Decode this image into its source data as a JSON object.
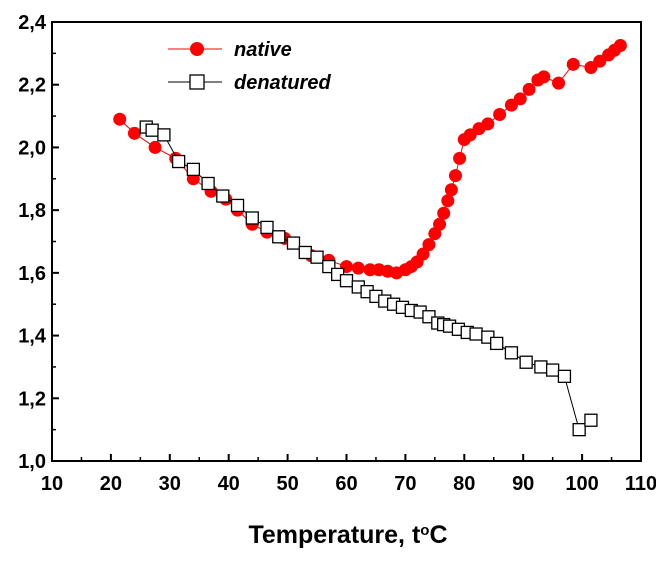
{
  "chart_data": {
    "type": "scatter",
    "title": "",
    "xlabel_main": "Temperature, t",
    "xlabel_sup": "o",
    "xlabel_unit": "C",
    "ylabel": "",
    "xlim": [
      10,
      110
    ],
    "ylim": [
      1.0,
      2.4
    ],
    "x_ticks": [
      "10",
      "20",
      "30",
      "40",
      "50",
      "60",
      "70",
      "80",
      "90",
      "100",
      "110"
    ],
    "y_ticks": [
      "1,0",
      "1,2",
      "1,4",
      "1,6",
      "1,8",
      "2,0",
      "2,2",
      "2,4"
    ],
    "grid": false,
    "legend_position": "top-left",
    "series": [
      {
        "name": "native",
        "color": "#ff0000",
        "marker": "filled-circle",
        "points": [
          [
            21.5,
            2.09
          ],
          [
            24,
            2.045
          ],
          [
            27.5,
            2.0
          ],
          [
            31,
            1.965
          ],
          [
            34,
            1.9
          ],
          [
            37,
            1.86
          ],
          [
            39.5,
            1.835
          ],
          [
            41.5,
            1.8
          ],
          [
            44,
            1.755
          ],
          [
            46.5,
            1.73
          ],
          [
            49.5,
            1.71
          ],
          [
            54,
            1.655
          ],
          [
            57,
            1.64
          ],
          [
            60,
            1.62
          ],
          [
            62,
            1.615
          ],
          [
            64,
            1.61
          ],
          [
            65.5,
            1.61
          ],
          [
            67,
            1.605
          ],
          [
            68.5,
            1.6
          ],
          [
            70,
            1.61
          ],
          [
            71,
            1.62
          ],
          [
            72,
            1.635
          ],
          [
            73,
            1.66
          ],
          [
            74,
            1.69
          ],
          [
            75,
            1.725
          ],
          [
            75.8,
            1.755
          ],
          [
            76.5,
            1.79
          ],
          [
            77.2,
            1.83
          ],
          [
            77.8,
            1.865
          ],
          [
            78.5,
            1.91
          ],
          [
            79.2,
            1.965
          ],
          [
            80,
            2.025
          ],
          [
            81,
            2.04
          ],
          [
            82.5,
            2.06
          ],
          [
            84,
            2.075
          ],
          [
            86,
            2.105
          ],
          [
            88,
            2.135
          ],
          [
            89.5,
            2.155
          ],
          [
            91,
            2.185
          ],
          [
            92.5,
            2.215
          ],
          [
            93.5,
            2.225
          ],
          [
            96,
            2.205
          ],
          [
            98.5,
            2.265
          ],
          [
            101.5,
            2.255
          ],
          [
            103,
            2.275
          ],
          [
            104.5,
            2.295
          ],
          [
            105.5,
            2.31
          ],
          [
            106.5,
            2.325
          ]
        ]
      },
      {
        "name": "denatured",
        "color": "#000000",
        "marker": "open-square",
        "points": [
          [
            26,
            2.065
          ],
          [
            27,
            2.055
          ],
          [
            29,
            2.04
          ],
          [
            31.5,
            1.955
          ],
          [
            34,
            1.93
          ],
          [
            36.5,
            1.885
          ],
          [
            39,
            1.845
          ],
          [
            41.5,
            1.815
          ],
          [
            44,
            1.775
          ],
          [
            46.5,
            1.745
          ],
          [
            48.5,
            1.715
          ],
          [
            51,
            1.695
          ],
          [
            53,
            1.665
          ],
          [
            55,
            1.65
          ],
          [
            57,
            1.62
          ],
          [
            58.5,
            1.595
          ],
          [
            60,
            1.575
          ],
          [
            62,
            1.555
          ],
          [
            63.5,
            1.54
          ],
          [
            65,
            1.525
          ],
          [
            66.5,
            1.51
          ],
          [
            68,
            1.5
          ],
          [
            69.5,
            1.49
          ],
          [
            71,
            1.48
          ],
          [
            72.5,
            1.475
          ],
          [
            74,
            1.46
          ],
          [
            75.5,
            1.44
          ],
          [
            76.5,
            1.435
          ],
          [
            77.5,
            1.43
          ],
          [
            79,
            1.42
          ],
          [
            80.5,
            1.41
          ],
          [
            82,
            1.405
          ],
          [
            84,
            1.395
          ],
          [
            85.5,
            1.375
          ],
          [
            88,
            1.345
          ],
          [
            90.5,
            1.315
          ],
          [
            93,
            1.3
          ],
          [
            95,
            1.29
          ],
          [
            97,
            1.27
          ],
          [
            99.5,
            1.1
          ],
          [
            101.5,
            1.13
          ]
        ]
      }
    ]
  }
}
